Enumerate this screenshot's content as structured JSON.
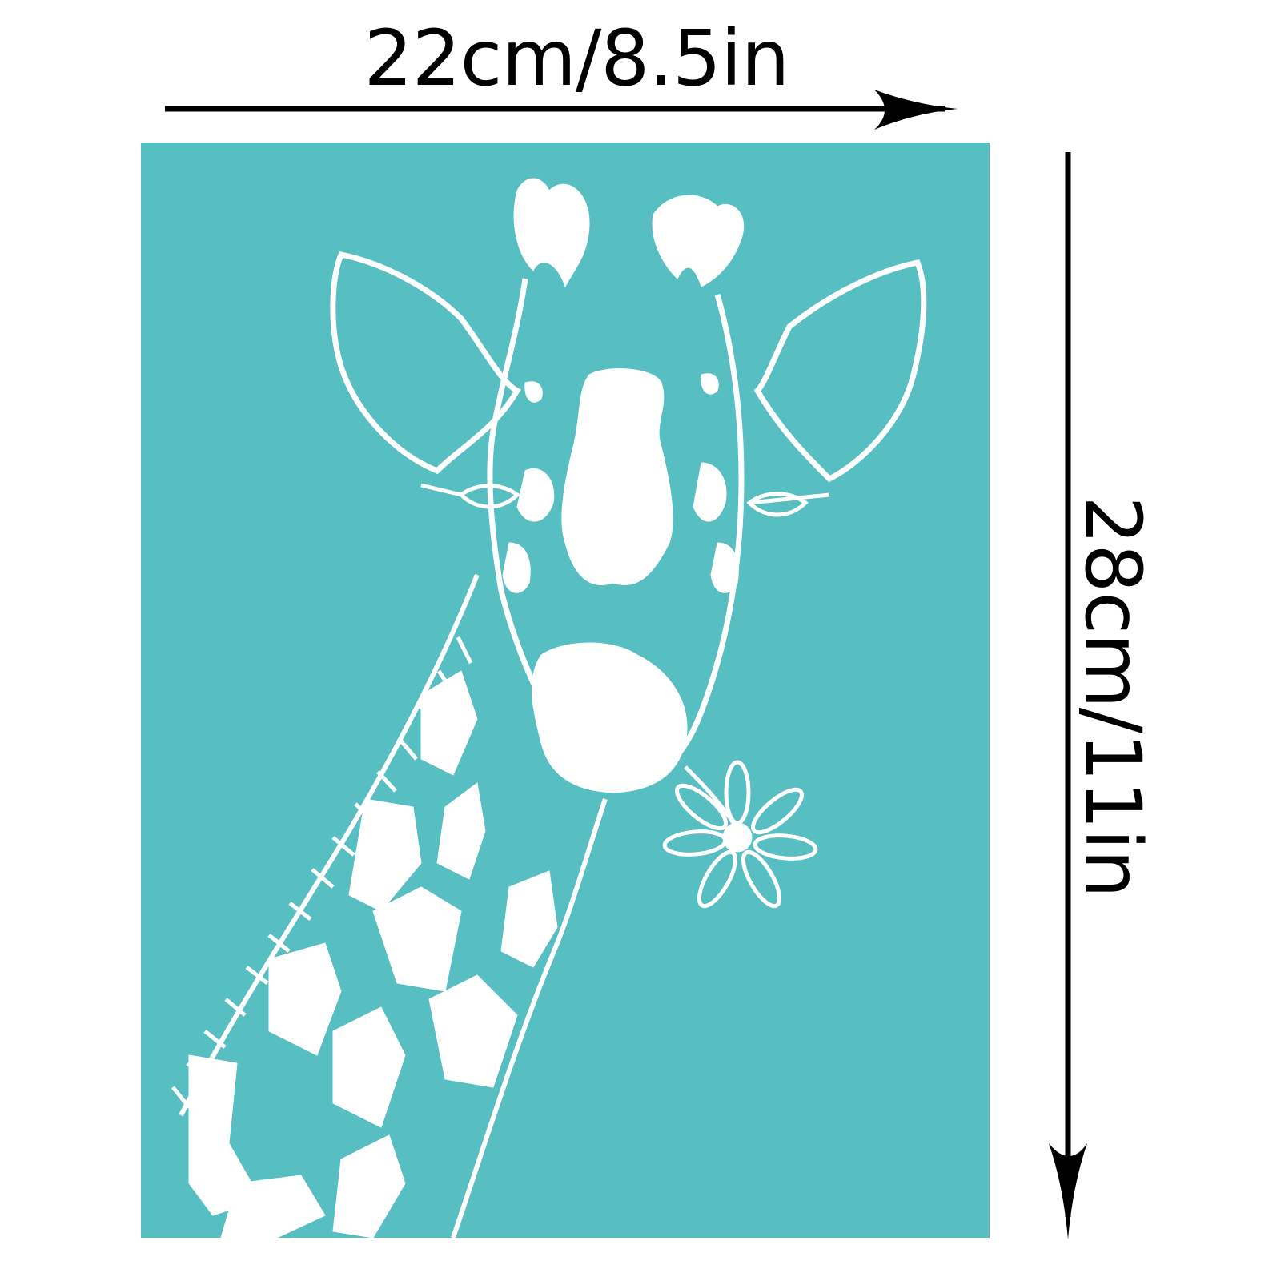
{
  "dimensions": {
    "width_label": "22cm/8.5in",
    "height_label": "28cm/11in"
  },
  "colors": {
    "sheet": "#57bec1",
    "design": "#ffffff",
    "arrow": "#000000"
  },
  "design": {
    "subject": "giraffe-with-flower-icon"
  }
}
